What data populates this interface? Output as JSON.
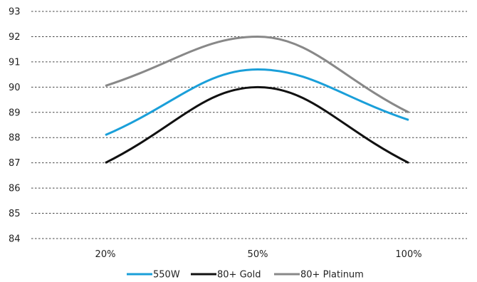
{
  "chart_data": {
    "type": "line",
    "title": "",
    "xlabel": "",
    "ylabel": "",
    "categories": [
      "20%",
      "50%",
      "100%"
    ],
    "x": [
      20,
      50,
      100
    ],
    "ylim": [
      84,
      93
    ],
    "yticks": [
      "84",
      "85",
      "86",
      "87",
      "88",
      "89",
      "90",
      "91",
      "92",
      "93"
    ],
    "grid": "horizontal dashed",
    "legend": "bottom-center",
    "series": [
      {
        "name": "550W",
        "values": [
          88.1,
          90.7,
          88.7
        ],
        "color": "#1a9fd9"
      },
      {
        "name": "80+ Gold",
        "values": [
          87.0,
          90.0,
          87.0
        ],
        "color": "#111111"
      },
      {
        "name": "80+ Platinum",
        "values": [
          90.05,
          92.0,
          89.0
        ],
        "color": "#888888"
      }
    ]
  }
}
